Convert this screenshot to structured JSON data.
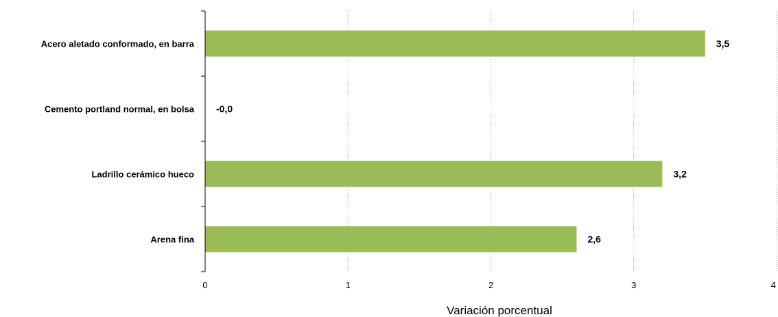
{
  "chart_data": {
    "type": "bar",
    "orientation": "horizontal",
    "categories": [
      "Acero aletado conformado, en barra",
      "Cemento portland normal, en bolsa",
      "Ladrillo cerámico hueco",
      "Arena fina"
    ],
    "values": [
      3.5,
      -0.0,
      3.2,
      2.6
    ],
    "data_labels": [
      "3,5",
      "-0,0",
      "3,2",
      "2,6"
    ],
    "xlabel": "Variación porcentual",
    "xlim": [
      0,
      4
    ],
    "xticks": [
      0,
      1,
      2,
      3,
      4
    ],
    "xtick_labels": [
      "0",
      "1",
      "2",
      "3",
      "4"
    ],
    "grid": "vertical dotted",
    "bar_color": "#9BBB59",
    "legend": "none"
  }
}
